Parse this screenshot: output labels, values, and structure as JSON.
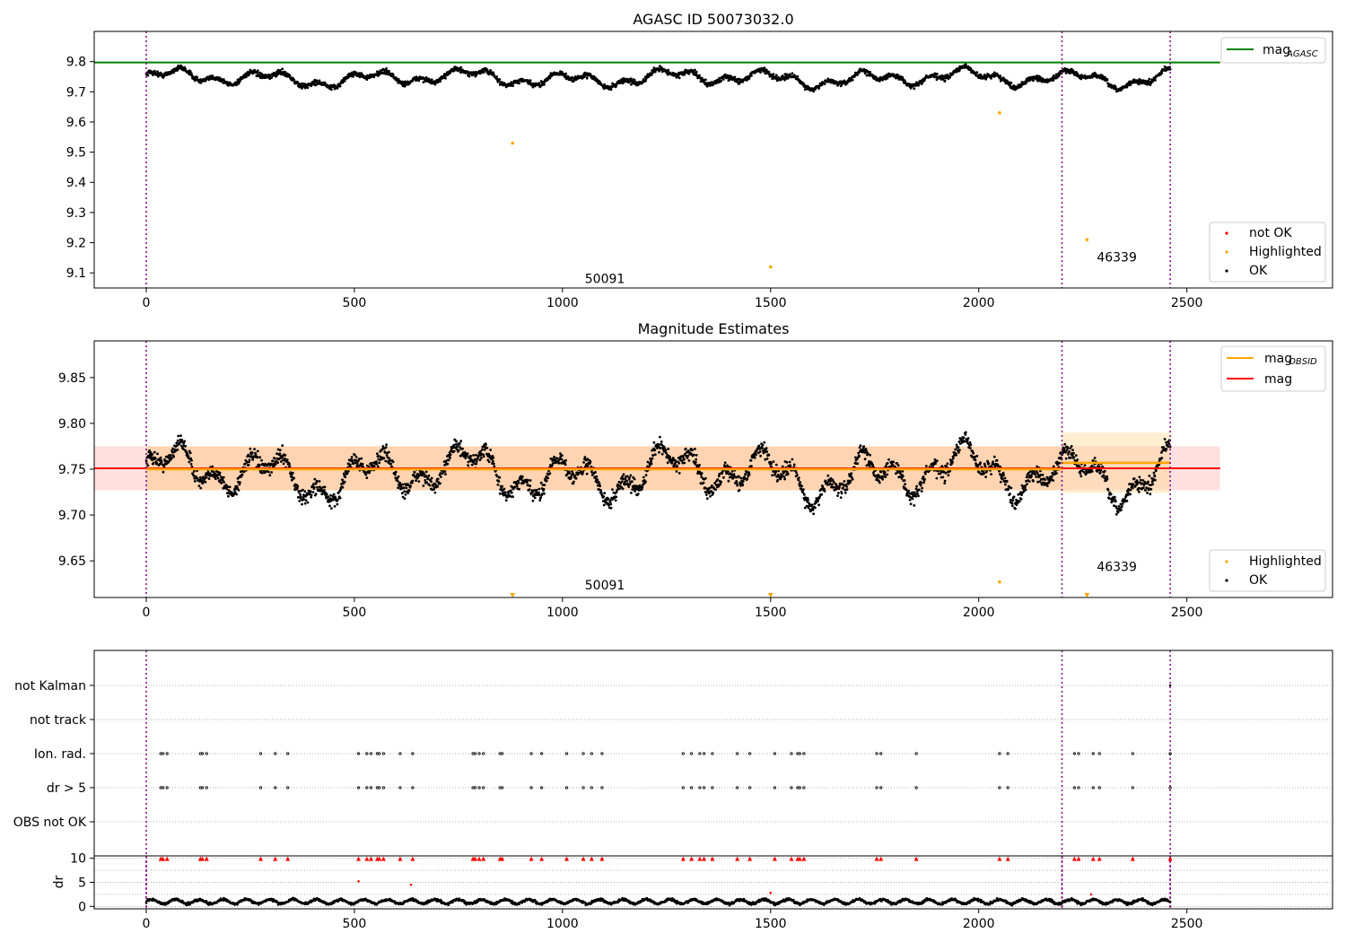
{
  "chart_data": [
    {
      "type": "scatter",
      "title": "AGASC ID 50073032.0",
      "xlim": [
        -125,
        2850
      ],
      "ylim": [
        9.05,
        9.9
      ],
      "xticks": [
        "0",
        "500",
        "1000",
        "1500",
        "2000",
        "2500"
      ],
      "yticks": [
        "9.1",
        "9.2",
        "9.3",
        "9.4",
        "9.5",
        "9.6",
        "9.7",
        "9.8"
      ],
      "grid": false,
      "legend_placement_top": "upper right",
      "legend_placement_bottom": "lower right",
      "lines": [
        {
          "name": "mag$_{AGASC}$",
          "label_main": "mag",
          "label_sub": "AGASC",
          "color": "#008000",
          "y": 9.797,
          "x": [
            -125,
            2580
          ]
        }
      ],
      "vlines": [
        0,
        2200,
        2460
      ],
      "annotations": [
        {
          "text": "50091",
          "x": 1050,
          "y": 9.07
        },
        {
          "text": "46339",
          "x": 2280,
          "y": 9.14
        }
      ],
      "highlighted": [
        {
          "x": 880,
          "y": 9.53
        },
        {
          "x": 1500,
          "y": 9.12
        },
        {
          "x": 2050,
          "y": 9.63
        },
        {
          "x": 2260,
          "y": 9.21
        }
      ],
      "legend": [
        "not OK",
        "Highlighted",
        "OK"
      ],
      "ok_series": {
        "x_range": [
          0,
          2460
        ],
        "approx_points": 2460,
        "baseline": 9.745,
        "scatter": 0.02
      }
    },
    {
      "type": "scatter",
      "title": "Magnitude Estimates",
      "xlim": [
        -125,
        2850
      ],
      "ylim": [
        9.61,
        9.89
      ],
      "xticks": [
        "0",
        "500",
        "1000",
        "1500",
        "2000",
        "2500"
      ],
      "yticks": [
        "9.65",
        "9.70",
        "9.75",
        "9.80",
        "9.85"
      ],
      "lines": [
        {
          "name": "mag$_{OBSID}$",
          "label_main": "mag",
          "label_sub": "OBSID",
          "color": "#ffa500",
          "segments": [
            {
              "x": [
                0,
                2200
              ],
              "y": 9.75
            },
            {
              "x": [
                2200,
                2460
              ],
              "y": 9.757
            }
          ]
        },
        {
          "name": "mag",
          "color": "#ff0000",
          "x": [
            -125,
            2580
          ],
          "y": 9.751
        }
      ],
      "bands": [
        {
          "color": "#ff0000",
          "x": [
            -125,
            2580
          ],
          "y": [
            9.727,
            9.775
          ]
        },
        {
          "color": "#ffa500",
          "x": [
            0,
            2200
          ],
          "y": [
            9.727,
            9.775
          ]
        },
        {
          "color": "#ffd27f",
          "x": [
            2200,
            2460
          ],
          "y": [
            9.724,
            9.79
          ]
        }
      ],
      "vlines": [
        0,
        2200,
        2460
      ],
      "annotations": [
        {
          "text": "50091",
          "x": 1050,
          "y": 9.62
        },
        {
          "text": "46339",
          "x": 2280,
          "y": 9.64
        }
      ],
      "highlighted": [
        {
          "x": 2050,
          "y": 9.627
        }
      ],
      "highlighted_off_scale": [
        880,
        1500,
        2260
      ],
      "legend": [
        "Highlighted",
        "OK"
      ]
    },
    {
      "type": "scatter",
      "title": "",
      "xlim": [
        -125,
        2850
      ],
      "categories": [
        "not Kalman",
        "not track",
        "Ion. rad.",
        "dr > 5",
        "OBS not OK"
      ],
      "flag_x": [
        35,
        40,
        50,
        130,
        135,
        145,
        275,
        310,
        340,
        510,
        530,
        540,
        555,
        560,
        570,
        610,
        640,
        785,
        790,
        800,
        810,
        850,
        855,
        925,
        950,
        1010,
        1050,
        1070,
        1095,
        1290,
        1310,
        1330,
        1340,
        1360,
        1420,
        1450,
        1510,
        1550,
        1565,
        1570,
        1580,
        1755,
        1765,
        1850,
        2050,
        2070,
        2230,
        2240,
        2275,
        2290,
        2370,
        2460
      ],
      "not_kalman_x": [
        2460
      ]
    },
    {
      "type": "line",
      "ylabel": "dr",
      "xlim": [
        -125,
        2850
      ],
      "ylim": [
        -0.5,
        10.5
      ],
      "xticks": [
        "0",
        "500",
        "1000",
        "1500",
        "2000",
        "2500"
      ],
      "yticks": [
        "0",
        "5",
        "10"
      ],
      "outliers": [
        {
          "x": 510,
          "y": 5.2
        },
        {
          "x": 636,
          "y": 4.5
        },
        {
          "x": 1500,
          "y": 2.8
        },
        {
          "x": 2270,
          "y": 2.5
        }
      ],
      "clipped_marker_y": 10,
      "baseline": 1.0
    }
  ],
  "colors": {
    "ok": "#000000",
    "highlighted": "#ffa500",
    "not_ok": "#ff0000",
    "vline": "#800080"
  }
}
